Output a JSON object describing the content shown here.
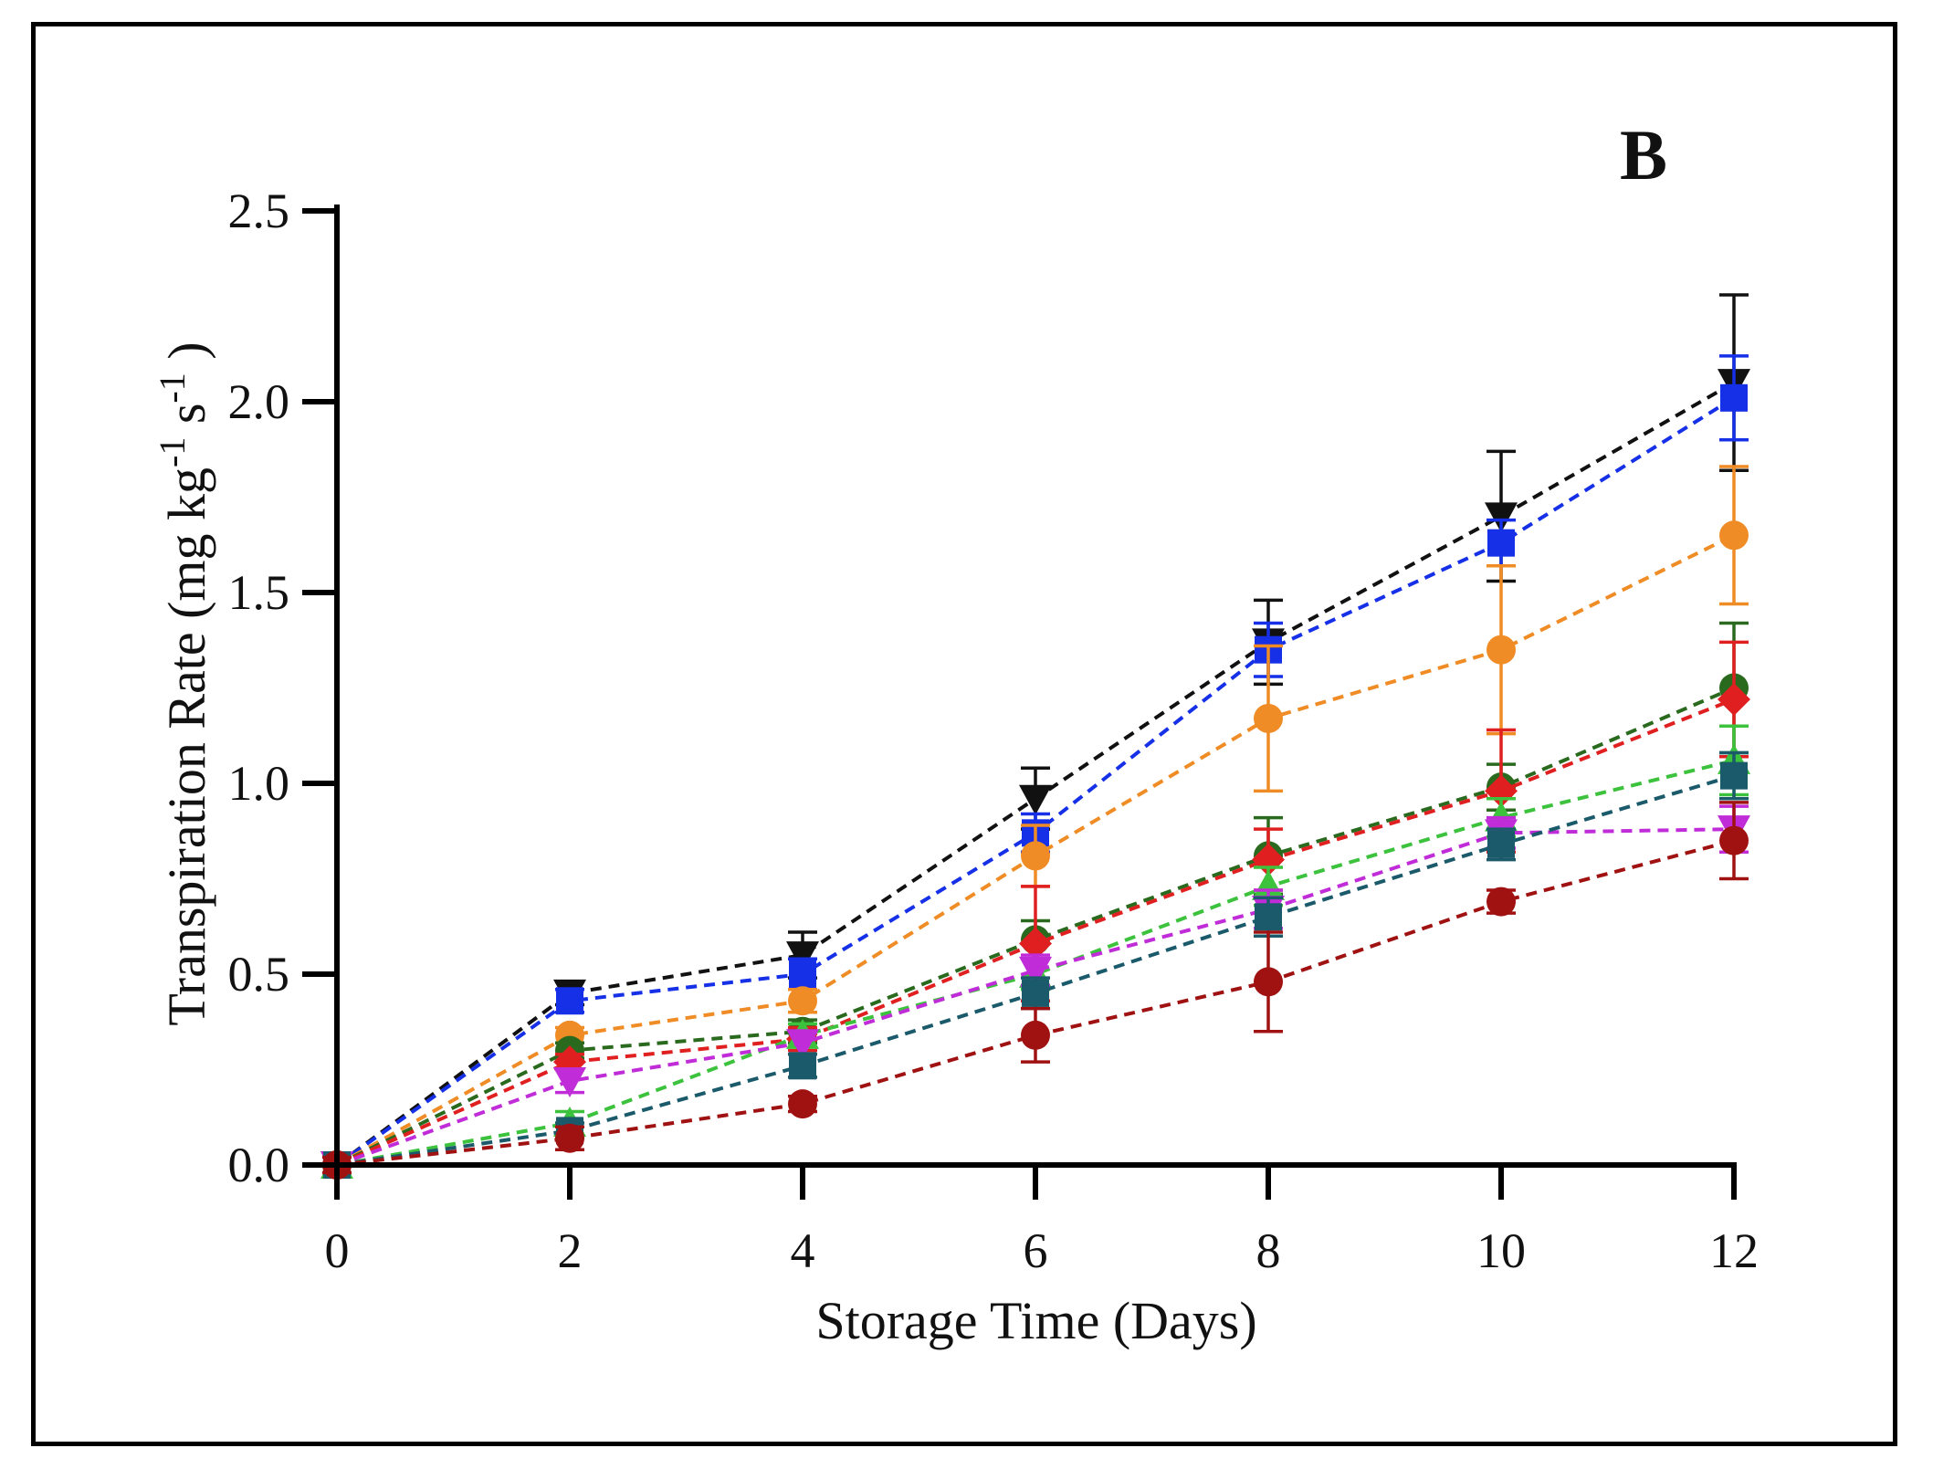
{
  "chart_data": {
    "type": "line",
    "panel_label": "B",
    "xlabel": "Storage Time (Days)",
    "ylabel": {
      "text": "Transpiration Rate (mg kg",
      "sup1": "-1",
      "mid": " s",
      "sup2": "-1",
      "end": " )"
    },
    "xlim": [
      0,
      12
    ],
    "ylim": [
      0,
      2.5
    ],
    "x_ticks": [
      "0",
      "2",
      "4",
      "6",
      "8",
      "10",
      "12"
    ],
    "y_ticks": [
      "0.0",
      "0.5",
      "1.0",
      "1.5",
      "2.0",
      "2.5"
    ],
    "x": [
      0,
      2,
      4,
      6,
      8,
      10,
      12
    ],
    "grid": false,
    "legend": "none",
    "series": [
      {
        "name": "black",
        "color": "#111111",
        "marker": "triangle-down",
        "values": [
          0.0,
          0.45,
          0.55,
          0.96,
          1.37,
          1.7,
          2.05
        ],
        "errors": [
          0.02,
          0.03,
          0.06,
          0.08,
          0.11,
          0.17,
          0.23
        ]
      },
      {
        "name": "blue",
        "color": "#1530e6",
        "marker": "square",
        "values": [
          0.0,
          0.43,
          0.5,
          0.87,
          1.35,
          1.63,
          2.01
        ],
        "errors": [
          0.02,
          0.03,
          0.04,
          0.05,
          0.07,
          0.06,
          0.11
        ]
      },
      {
        "name": "orange",
        "color": "#f08c26",
        "marker": "circle",
        "values": [
          0.0,
          0.34,
          0.43,
          0.81,
          1.17,
          1.35,
          1.65
        ],
        "errors": [
          0.02,
          0.02,
          0.03,
          0.08,
          0.19,
          0.22,
          0.18
        ]
      },
      {
        "name": "dark-green",
        "color": "#2a6a1e",
        "marker": "circle",
        "values": [
          0.0,
          0.3,
          0.35,
          0.59,
          0.81,
          0.99,
          1.25
        ],
        "errors": [
          0.02,
          0.02,
          0.03,
          0.05,
          0.1,
          0.06,
          0.17
        ]
      },
      {
        "name": "red",
        "color": "#e02020",
        "marker": "diamond",
        "values": [
          0.0,
          0.27,
          0.33,
          0.58,
          0.8,
          0.98,
          1.22
        ],
        "errors": [
          0.02,
          0.02,
          0.03,
          0.15,
          0.08,
          0.16,
          0.15
        ]
      },
      {
        "name": "green",
        "color": "#3cc23c",
        "marker": "triangle-up",
        "values": [
          0.0,
          0.11,
          0.34,
          0.5,
          0.73,
          0.91,
          1.06
        ],
        "errors": [
          0.02,
          0.03,
          0.03,
          0.04,
          0.05,
          0.05,
          0.09
        ]
      },
      {
        "name": "magenta",
        "color": "#c02cd8",
        "marker": "triangle-down",
        "values": [
          0.0,
          0.22,
          0.32,
          0.51,
          0.67,
          0.87,
          0.88
        ],
        "errors": [
          0.02,
          0.03,
          0.03,
          0.04,
          0.05,
          0.04,
          0.06
        ]
      },
      {
        "name": "teal",
        "color": "#1a5a6a",
        "marker": "square",
        "values": [
          0.0,
          0.09,
          0.26,
          0.45,
          0.65,
          0.84,
          1.02
        ],
        "errors": [
          0.02,
          0.02,
          0.03,
          0.04,
          0.05,
          0.04,
          0.06
        ]
      },
      {
        "name": "dark-red",
        "color": "#a01212",
        "marker": "circle",
        "values": [
          0.0,
          0.07,
          0.16,
          0.34,
          0.48,
          0.69,
          0.85
        ],
        "errors": [
          0.02,
          0.03,
          0.02,
          0.07,
          0.13,
          0.03,
          0.1
        ]
      }
    ]
  }
}
